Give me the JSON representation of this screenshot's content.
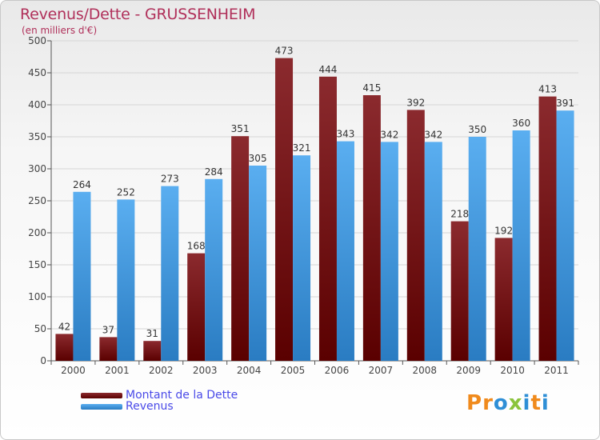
{
  "header": {
    "title": "Revenus/Dette - GRUSSENHEIM",
    "subtitle": "(en milliers d'€)"
  },
  "legend": {
    "items": [
      {
        "label": "Montant de la Dette",
        "color": "#6b0f14"
      },
      {
        "label": "Revenus",
        "color": "#4ba3e3"
      }
    ]
  },
  "brand": {
    "letters": [
      {
        "ch": "P",
        "color": "#f08a1c"
      },
      {
        "ch": "r",
        "color": "#f08a1c"
      },
      {
        "ch": "o",
        "color": "#2f8fd6"
      },
      {
        "ch": "x",
        "color": "#8bc43c"
      },
      {
        "ch": "i",
        "color": "#2f8fd6"
      },
      {
        "ch": "t",
        "color": "#f08a1c"
      },
      {
        "ch": "i",
        "color": "#2f8fd6"
      }
    ]
  },
  "chart_data": {
    "type": "bar",
    "title": "Revenus/Dette - GRUSSENHEIM",
    "subtitle": "(en milliers d'€)",
    "categories": [
      "2000",
      "2001",
      "2002",
      "2003",
      "2004",
      "2005",
      "2006",
      "2007",
      "2008",
      "2009",
      "2010",
      "2011"
    ],
    "series": [
      {
        "name": "Montant de la Dette",
        "color": "#7a1418",
        "values": [
          42,
          37,
          31,
          168,
          351,
          473,
          444,
          415,
          392,
          218,
          192,
          413
        ]
      },
      {
        "name": "Revenus",
        "color": "#4ba3e3",
        "values": [
          264,
          252,
          273,
          284,
          305,
          321,
          343,
          342,
          342,
          350,
          360,
          391
        ]
      }
    ],
    "ylim": [
      0,
      500
    ],
    "yticks": [
      0,
      50,
      100,
      150,
      200,
      250,
      300,
      350,
      400,
      450,
      500
    ],
    "grid": true,
    "legend_position": "bottom-left"
  }
}
